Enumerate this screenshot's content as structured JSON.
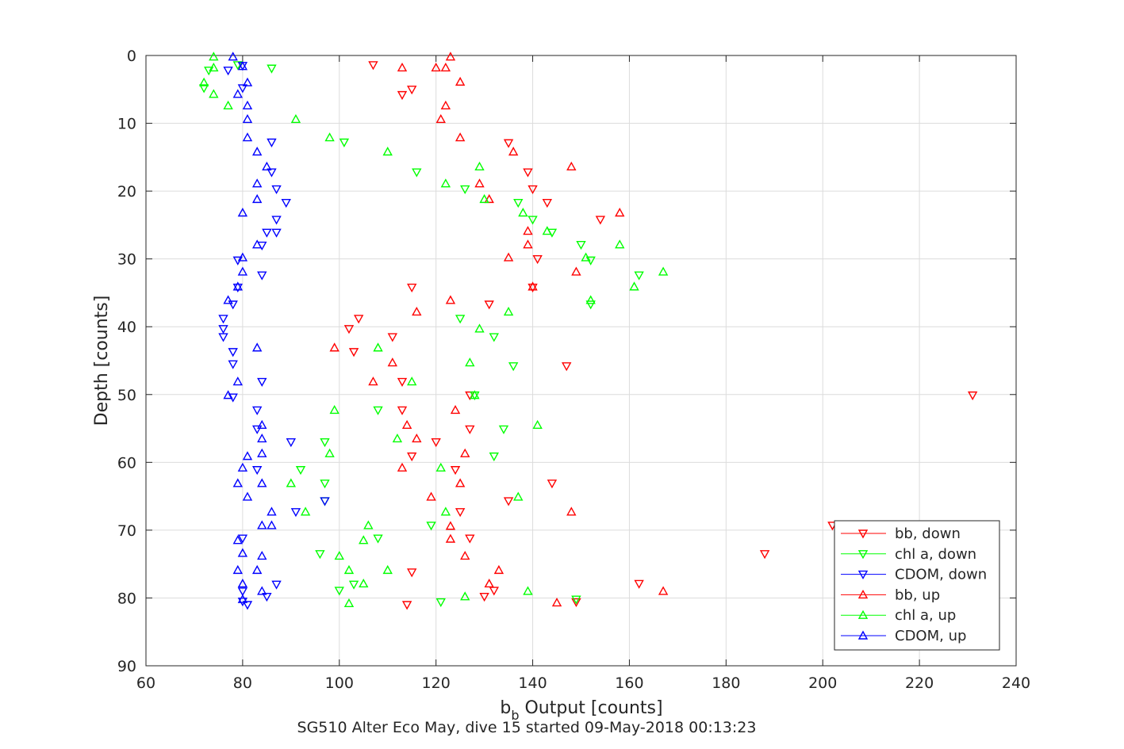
{
  "chart_data": {
    "type": "scatter",
    "xlabel_main": "b",
    "xlabel_sub": "b",
    "xlabel_rest": " Output [counts]",
    "ylabel": "Depth [counts]",
    "caption": "SG510 Alter Eco May, dive 15 started 09-May-2018 00:13:23",
    "xlim": [
      60,
      240
    ],
    "ylim": [
      0,
      90
    ],
    "y_reversed": true,
    "grid": true,
    "legend_position": "bottom-right",
    "xticks": [
      "60",
      "80",
      "100",
      "120",
      "140",
      "160",
      "180",
      "200",
      "220",
      "240"
    ],
    "yticks": [
      "0",
      "10",
      "20",
      "30",
      "40",
      "50",
      "60",
      "70",
      "80",
      "90"
    ],
    "series": [
      {
        "name": "bb, down",
        "color": "#ff0000",
        "marker": "triangle-down",
        "points": [
          [
            107,
            1.4
          ],
          [
            113,
            5.8
          ],
          [
            115,
            5
          ],
          [
            135,
            12.9
          ],
          [
            139,
            17.2
          ],
          [
            140,
            19.7
          ],
          [
            143,
            21.7
          ],
          [
            154,
            24.2
          ],
          [
            141,
            30
          ],
          [
            115,
            34.2
          ],
          [
            140,
            34.2
          ],
          [
            131,
            36.7
          ],
          [
            104,
            38.8
          ],
          [
            102,
            40.3
          ],
          [
            111,
            41.5
          ],
          [
            103,
            43.7
          ],
          [
            147,
            45.8
          ],
          [
            113,
            48.1
          ],
          [
            231,
            50.1
          ],
          [
            127,
            50.1
          ],
          [
            113,
            52.3
          ],
          [
            127,
            55.1
          ],
          [
            120,
            57
          ],
          [
            115,
            59.1
          ],
          [
            124,
            61.1
          ],
          [
            144,
            63.1
          ],
          [
            135,
            65.7
          ],
          [
            125,
            67.3
          ],
          [
            202,
            69.3
          ],
          [
            127,
            71.2
          ],
          [
            188,
            73.5
          ],
          [
            115,
            76.2
          ],
          [
            132,
            78.9
          ],
          [
            162,
            77.9
          ],
          [
            130,
            79.8
          ],
          [
            149,
            80.6
          ],
          [
            114,
            81
          ]
        ]
      },
      {
        "name": "chl a, down",
        "color": "#00ff00",
        "marker": "triangle-down",
        "points": [
          [
            79,
            1.4
          ],
          [
            86,
            1.9
          ],
          [
            73,
            2.2
          ],
          [
            72,
            4.8
          ],
          [
            101,
            12.8
          ],
          [
            116,
            17.2
          ],
          [
            126,
            19.7
          ],
          [
            137,
            21.7
          ],
          [
            140,
            24.2
          ],
          [
            144,
            26.1
          ],
          [
            150,
            27.9
          ],
          [
            152,
            30.2
          ],
          [
            162,
            32.4
          ],
          [
            152,
            36.7
          ],
          [
            125,
            38.8
          ],
          [
            132,
            41.5
          ],
          [
            136,
            45.8
          ],
          [
            128,
            50.1
          ],
          [
            108,
            52.3
          ],
          [
            134,
            55.1
          ],
          [
            97,
            57
          ],
          [
            132,
            59.1
          ],
          [
            92,
            61.1
          ],
          [
            97,
            63.1
          ],
          [
            97,
            65.7
          ],
          [
            119,
            69.3
          ],
          [
            108,
            71.2
          ],
          [
            96,
            73.5
          ],
          [
            103,
            78
          ],
          [
            100,
            78.9
          ],
          [
            121,
            80.6
          ],
          [
            149,
            80.2
          ]
        ]
      },
      {
        "name": "CDOM, down",
        "color": "#0000ff",
        "marker": "triangle-down",
        "points": [
          [
            80,
            1.5
          ],
          [
            77,
            2.2
          ],
          [
            80,
            4.8
          ],
          [
            86,
            12.8
          ],
          [
            86,
            17.2
          ],
          [
            87,
            19.7
          ],
          [
            89,
            21.7
          ],
          [
            87,
            24.2
          ],
          [
            85,
            26.1
          ],
          [
            87,
            26.1
          ],
          [
            84,
            28
          ],
          [
            79,
            30.2
          ],
          [
            84,
            32.4
          ],
          [
            79,
            34.2
          ],
          [
            78,
            36.7
          ],
          [
            76,
            38.8
          ],
          [
            76,
            40.3
          ],
          [
            76,
            41.5
          ],
          [
            78,
            43.7
          ],
          [
            78,
            45.5
          ],
          [
            84,
            48.1
          ],
          [
            78,
            50.4
          ],
          [
            83,
            52.3
          ],
          [
            83,
            55.1
          ],
          [
            90,
            57
          ],
          [
            83,
            61.1
          ],
          [
            97,
            65.7
          ],
          [
            91,
            67.3
          ],
          [
            80,
            71.2
          ],
          [
            87,
            78
          ],
          [
            80,
            79
          ],
          [
            85,
            79.8
          ],
          [
            80,
            80.5
          ],
          [
            81,
            81
          ]
        ]
      },
      {
        "name": "bb, up",
        "color": "#ff0000",
        "marker": "triangle-up",
        "points": [
          [
            123,
            0.2
          ],
          [
            113,
            1.8
          ],
          [
            120,
            1.8
          ],
          [
            122,
            1.8
          ],
          [
            125,
            3.9
          ],
          [
            122,
            7.4
          ],
          [
            121,
            9.4
          ],
          [
            125,
            12.1
          ],
          [
            136,
            14.2
          ],
          [
            148,
            16.4
          ],
          [
            129,
            18.9
          ],
          [
            131,
            21.2
          ],
          [
            158,
            23.2
          ],
          [
            139,
            25.9
          ],
          [
            139,
            27.9
          ],
          [
            135,
            29.8
          ],
          [
            149,
            31.9
          ],
          [
            140,
            34.1
          ],
          [
            123,
            36.1
          ],
          [
            116,
            37.8
          ],
          [
            99,
            43.1
          ],
          [
            111,
            45.3
          ],
          [
            107,
            48.1
          ],
          [
            124,
            52.3
          ],
          [
            114,
            54.5
          ],
          [
            116,
            56.5
          ],
          [
            126,
            58.7
          ],
          [
            113,
            60.8
          ],
          [
            125,
            63.1
          ],
          [
            119,
            65.1
          ],
          [
            148,
            67.3
          ],
          [
            123,
            69.4
          ],
          [
            123,
            71.3
          ],
          [
            126,
            73.8
          ],
          [
            133,
            75.9
          ],
          [
            131,
            77.9
          ],
          [
            167,
            79
          ],
          [
            145,
            80.7
          ]
        ]
      },
      {
        "name": "chl a, up",
        "color": "#00ff00",
        "marker": "triangle-up",
        "points": [
          [
            74,
            0.2
          ],
          [
            74,
            1.8
          ],
          [
            72,
            4
          ],
          [
            74,
            5.7
          ],
          [
            77,
            7.4
          ],
          [
            91,
            9.4
          ],
          [
            98,
            12.1
          ],
          [
            110,
            14.2
          ],
          [
            129,
            16.4
          ],
          [
            122,
            18.9
          ],
          [
            130,
            21.2
          ],
          [
            138,
            23.2
          ],
          [
            143,
            25.9
          ],
          [
            151,
            29.8
          ],
          [
            167,
            31.9
          ],
          [
            161,
            34.1
          ],
          [
            152,
            36.1
          ],
          [
            135,
            37.8
          ],
          [
            129,
            40.3
          ],
          [
            108,
            43.1
          ],
          [
            127,
            45.3
          ],
          [
            115,
            48.1
          ],
          [
            128,
            50.1
          ],
          [
            99,
            52.3
          ],
          [
            141,
            54.5
          ],
          [
            112,
            56.5
          ],
          [
            98,
            58.7
          ],
          [
            121,
            60.8
          ],
          [
            90,
            63.1
          ],
          [
            137,
            65.1
          ],
          [
            122,
            67.3
          ],
          [
            93,
            67.3
          ],
          [
            106,
            69.3
          ],
          [
            105,
            71.5
          ],
          [
            100,
            73.8
          ],
          [
            110,
            75.9
          ],
          [
            102,
            75.9
          ],
          [
            105,
            77.9
          ],
          [
            139,
            79
          ],
          [
            126,
            79.8
          ],
          [
            102,
            80.8
          ],
          [
            158,
            27.9
          ]
        ]
      },
      {
        "name": "CDOM, up",
        "color": "#0000ff",
        "marker": "triangle-up",
        "points": [
          [
            78,
            0.2
          ],
          [
            80,
            1.6
          ],
          [
            81,
            4
          ],
          [
            79,
            5.7
          ],
          [
            81,
            7.4
          ],
          [
            81,
            9.4
          ],
          [
            81,
            12.1
          ],
          [
            83,
            14.2
          ],
          [
            85,
            16.4
          ],
          [
            83,
            18.9
          ],
          [
            83,
            21.2
          ],
          [
            80,
            23.2
          ],
          [
            83,
            27.9
          ],
          [
            80,
            29.8
          ],
          [
            80,
            31.9
          ],
          [
            79,
            34.1
          ],
          [
            77,
            36.1
          ],
          [
            83,
            43.1
          ],
          [
            79,
            48.1
          ],
          [
            77,
            50.1
          ],
          [
            84,
            54.5
          ],
          [
            84,
            56.5
          ],
          [
            84,
            58.7
          ],
          [
            81,
            59.1
          ],
          [
            80,
            60.8
          ],
          [
            79,
            63.1
          ],
          [
            84,
            63.1
          ],
          [
            81,
            65.1
          ],
          [
            86,
            67.3
          ],
          [
            84,
            69.3
          ],
          [
            86,
            69.3
          ],
          [
            79,
            71.5
          ],
          [
            80,
            73.4
          ],
          [
            84,
            73.8
          ],
          [
            79,
            75.9
          ],
          [
            83,
            75.9
          ],
          [
            80,
            77.9
          ],
          [
            84,
            79
          ],
          [
            80,
            80.2
          ]
        ]
      }
    ]
  }
}
